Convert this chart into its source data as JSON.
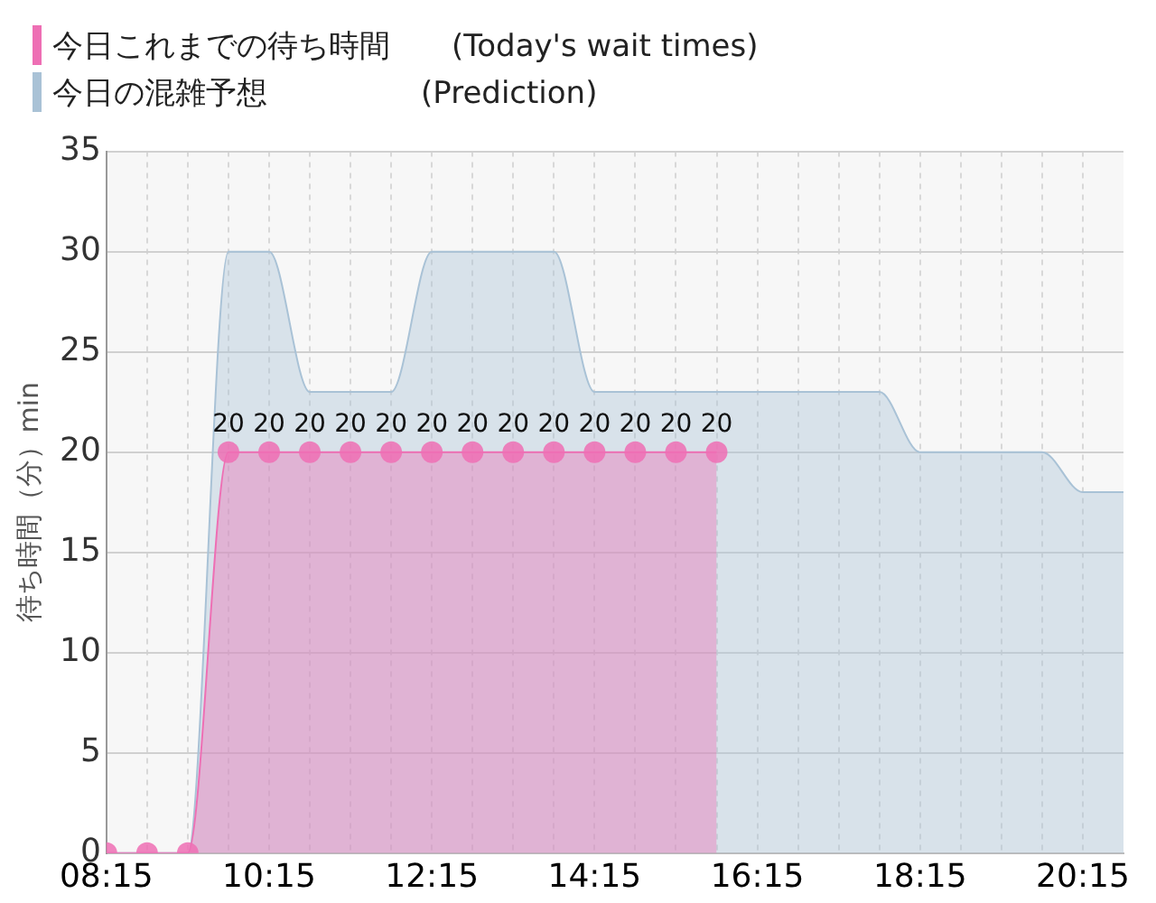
{
  "chart_data": {
    "type": "area",
    "ylabel": "待ち時間（分）min",
    "xlim": [
      8.25,
      20.75
    ],
    "ylim": [
      0,
      35
    ],
    "yticks": [
      0,
      5,
      10,
      15,
      20,
      25,
      30,
      35
    ],
    "xticks": [
      {
        "value": 8.25,
        "label": "08:15"
      },
      {
        "value": 8.75,
        "label": null
      },
      {
        "value": 9.25,
        "label": null
      },
      {
        "value": 9.75,
        "label": null
      },
      {
        "value": 10.25,
        "label": "10:15"
      },
      {
        "value": 10.75,
        "label": null
      },
      {
        "value": 11.25,
        "label": null
      },
      {
        "value": 11.75,
        "label": null
      },
      {
        "value": 12.25,
        "label": "12:15"
      },
      {
        "value": 12.75,
        "label": null
      },
      {
        "value": 13.25,
        "label": null
      },
      {
        "value": 13.75,
        "label": null
      },
      {
        "value": 14.25,
        "label": "14:15"
      },
      {
        "value": 14.75,
        "label": null
      },
      {
        "value": 15.25,
        "label": null
      },
      {
        "value": 15.75,
        "label": null
      },
      {
        "value": 16.25,
        "label": "16:15"
      },
      {
        "value": 16.75,
        "label": null
      },
      {
        "value": 17.25,
        "label": null
      },
      {
        "value": 17.75,
        "label": null
      },
      {
        "value": 18.25,
        "label": "18:15"
      },
      {
        "value": 18.75,
        "label": null
      },
      {
        "value": 19.25,
        "label": null
      },
      {
        "value": 19.75,
        "label": null
      },
      {
        "value": 20.25,
        "label": "20:15"
      }
    ],
    "grid": true,
    "legend": "top left",
    "marker": "circle",
    "series": [
      {
        "name": "今日これまでの待ち時間　　(Today's wait times)",
        "color": "#ee6fb4",
        "x": [
          8.25,
          8.75,
          9.25,
          9.75,
          10.25,
          10.75,
          11.25,
          11.75,
          12.25,
          12.75,
          13.25,
          13.75,
          14.25,
          14.75,
          15.25,
          15.75
        ],
        "values": [
          0,
          0,
          0,
          20,
          20,
          20,
          20,
          20,
          20,
          20,
          20,
          20,
          20,
          20,
          20,
          20
        ],
        "value_labels": [
          null,
          null,
          null,
          "20",
          "20",
          "20",
          "20",
          "20",
          "20",
          "20",
          "20",
          "20",
          "20",
          "20",
          "20",
          "20"
        ]
      },
      {
        "name": "今日の混雑予想　　　　　(Prediction)",
        "color": "#a9c2d6",
        "marker": "none",
        "x": [
          8.25,
          8.75,
          9.25,
          9.75,
          10.25,
          10.75,
          11.25,
          11.75,
          12.25,
          12.75,
          13.25,
          13.75,
          14.25,
          14.75,
          15.25,
          15.75,
          16.25,
          16.75,
          17.25,
          17.75,
          18.25,
          18.75,
          19.25,
          19.75,
          20.25,
          20.75
        ],
        "values": [
          0,
          0,
          0,
          30,
          30,
          23,
          23,
          23,
          30,
          30,
          30,
          30,
          23,
          23,
          23,
          23,
          23,
          23,
          23,
          23,
          20,
          20,
          20,
          20,
          18,
          18
        ]
      }
    ]
  }
}
